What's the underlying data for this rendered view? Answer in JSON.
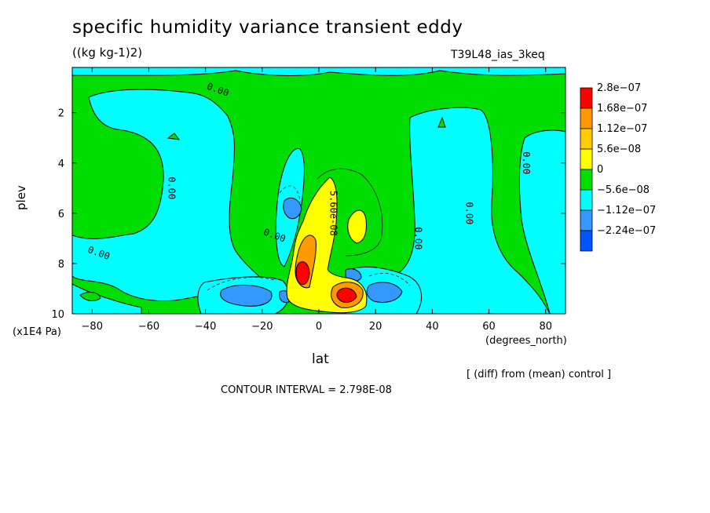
{
  "title": "specific humidity variance transient eddy",
  "units": "((kg kg-1)2)",
  "run_label": "T39L48_ias_3keq",
  "y_axis_name": "plev",
  "y_axis_units": "(x1E4 Pa)",
  "x_axis_name": "lat",
  "x_axis_units": "(degrees_north)",
  "diff_note": "[ (diff) from (mean) control ]",
  "contour_interval": "CONTOUR INTERVAL = 2.798E-08",
  "chart_data": {
    "type": "heatmap",
    "title": "specific humidity variance transient eddy",
    "xlabel": "lat",
    "ylabel": "plev",
    "xlim": [
      -87,
      87
    ],
    "ylim": [
      10,
      0.2
    ],
    "x_ticks": [
      -80,
      -60,
      -40,
      -20,
      0,
      20,
      40,
      60,
      80
    ],
    "y_ticks": [
      2,
      4,
      6,
      8,
      10
    ],
    "colorbar": {
      "labels": [
        "2.8e-07",
        "1.68e-07",
        "1.12e-07",
        "5.6e-08",
        "0",
        "-5.6e-08",
        "-1.12e-07",
        "-2.24e-07"
      ],
      "colors": [
        "#ff0000",
        "#ff9900",
        "#ffcc00",
        "#ffff00",
        "#00dd00",
        "#00ffff",
        "#3399ff",
        "#0055ff"
      ]
    },
    "contour_labels": [
      {
        "text": "0.00",
        "lat": -36,
        "plev": 1.2
      },
      {
        "text": "0.00",
        "lat": -53,
        "plev": 5.0
      },
      {
        "text": "0.00",
        "lat": -78,
        "plev": 7.7
      },
      {
        "text": "0.00",
        "lat": -16,
        "plev": 7.0
      },
      {
        "text": "5.60e-08",
        "lat": 4,
        "plev": 6.0
      },
      {
        "text": "0.00",
        "lat": 34,
        "plev": 7.0
      },
      {
        "text": "0.00",
        "lat": 52,
        "plev": 6.0
      },
      {
        "text": "0.00",
        "lat": 72,
        "plev": 4.0
      }
    ]
  }
}
